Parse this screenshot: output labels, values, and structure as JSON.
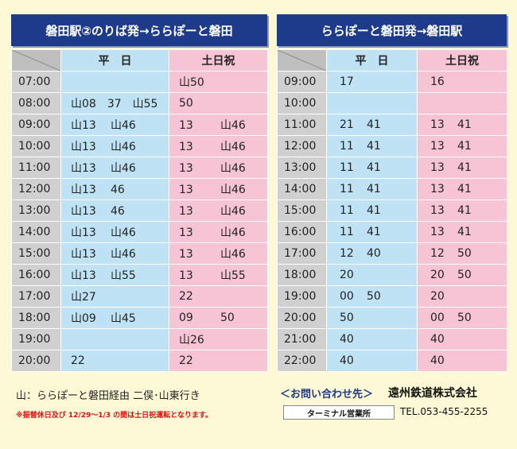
{
  "left": {
    "title": "磐田駅②のりば発→ららぽーと磐田",
    "col_weekday": "平　日",
    "col_holiday": "土日祝",
    "rows": [
      {
        "time": "07:00",
        "wd": [
          "",
          ""
        ],
        "we": [
          "山50",
          ""
        ]
      },
      {
        "time": "08:00",
        "wd": [
          "山08　37　山55",
          ""
        ],
        "we": [
          "50",
          ""
        ]
      },
      {
        "time": "09:00",
        "wd": [
          "山13",
          "山46"
        ],
        "we": [
          "13",
          "山46"
        ]
      },
      {
        "time": "10:00",
        "wd": [
          "山13",
          "山46"
        ],
        "we": [
          "13",
          "山46"
        ]
      },
      {
        "time": "11:00",
        "wd": [
          "山13",
          "山46"
        ],
        "we": [
          "13",
          "山46"
        ]
      },
      {
        "time": "12:00",
        "wd": [
          "山13",
          "46"
        ],
        "we": [
          "13",
          "山46"
        ]
      },
      {
        "time": "13:00",
        "wd": [
          "山13",
          "46"
        ],
        "we": [
          "13",
          "山46"
        ]
      },
      {
        "time": "14:00",
        "wd": [
          "山13",
          "山46"
        ],
        "we": [
          "13",
          "山46"
        ]
      },
      {
        "time": "15:00",
        "wd": [
          "山13",
          "山46"
        ],
        "we": [
          "13",
          "山46"
        ]
      },
      {
        "time": "16:00",
        "wd": [
          "山13",
          "山55"
        ],
        "we": [
          "13",
          "山55"
        ]
      },
      {
        "time": "17:00",
        "wd": [
          "山27",
          ""
        ],
        "we": [
          "22",
          ""
        ]
      },
      {
        "time": "18:00",
        "wd": [
          "山09",
          "山45"
        ],
        "we": [
          "09",
          "50"
        ]
      },
      {
        "time": "19:00",
        "wd": [
          "",
          ""
        ],
        "we": [
          "山26",
          ""
        ]
      },
      {
        "time": "20:00",
        "wd": [
          "22",
          ""
        ],
        "we": [
          "22",
          ""
        ]
      }
    ]
  },
  "right": {
    "title": "ららぽーと磐田発→磐田駅",
    "col_weekday": "平　日",
    "col_holiday": "土日祝",
    "rows": [
      {
        "time": "09:00",
        "wd": [
          "17",
          ""
        ],
        "we": [
          "16",
          ""
        ]
      },
      {
        "time": "10:00",
        "wd": [
          "",
          ""
        ],
        "we": [
          "",
          ""
        ]
      },
      {
        "time": "11:00",
        "wd": [
          "21",
          "41"
        ],
        "we": [
          "13",
          "41"
        ]
      },
      {
        "time": "12:00",
        "wd": [
          "11",
          "41"
        ],
        "we": [
          "13",
          "41"
        ]
      },
      {
        "time": "13:00",
        "wd": [
          "11",
          "41"
        ],
        "we": [
          "13",
          "41"
        ]
      },
      {
        "time": "14:00",
        "wd": [
          "11",
          "41"
        ],
        "we": [
          "13",
          "41"
        ]
      },
      {
        "time": "15:00",
        "wd": [
          "11",
          "41"
        ],
        "we": [
          "13",
          "41"
        ]
      },
      {
        "time": "16:00",
        "wd": [
          "11",
          "41"
        ],
        "we": [
          "13",
          "41"
        ]
      },
      {
        "time": "17:00",
        "wd": [
          "12",
          "40"
        ],
        "we": [
          "12",
          "50"
        ]
      },
      {
        "time": "18:00",
        "wd": [
          "20",
          ""
        ],
        "we": [
          "20",
          "50"
        ]
      },
      {
        "time": "19:00",
        "wd": [
          "00",
          "50"
        ],
        "we": [
          "20",
          ""
        ]
      },
      {
        "time": "20:00",
        "wd": [
          "50",
          ""
        ],
        "we": [
          "00",
          "50"
        ]
      },
      {
        "time": "21:00",
        "wd": [
          "40",
          ""
        ],
        "we": [
          "40",
          ""
        ]
      },
      {
        "time": "22:00",
        "wd": [
          "40",
          ""
        ],
        "we": [
          "40",
          ""
        ]
      }
    ]
  },
  "footer": {
    "legend": "山：ららぽーと磐田経由 二俣･山東行き",
    "note": "※振替休日及び 12/29～1/3 の間は土日祝運転となります。",
    "contact_label": "＜お問い合わせ先＞",
    "company": "遠州鉄道株式会社",
    "office": "ターミナル営業所",
    "tel": "TEL.053-455-2255"
  },
  "colors": {
    "header_bg": "#1e3a8a",
    "weekday": "#bfe3f5",
    "holiday": "#f7c4d6",
    "time": "#d0d0d0",
    "background": "#fdf9d6"
  }
}
